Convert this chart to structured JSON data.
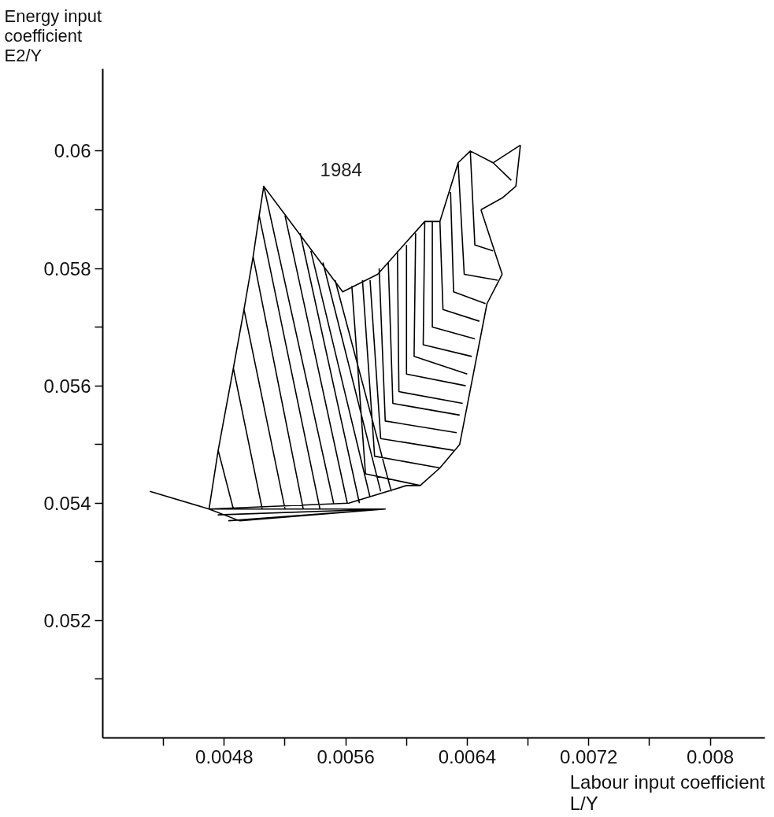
{
  "chart_data": {
    "type": "line",
    "xlabel": "Labour input coefficient\nL/Y",
    "ylabel": "Energy input\ncoefficient\nE2/Y",
    "annotations": [
      "1984"
    ],
    "xlim": [
      0.004,
      0.00836
    ],
    "ylim": [
      0.05,
      0.0614
    ],
    "xticks": [
      {
        "value": 0.0044,
        "label": null
      },
      0.0048,
      {
        "value": 0.0052,
        "label": null
      },
      0.0056,
      {
        "value": 0.006,
        "label": null
      },
      0.0064,
      {
        "value": 0.0068,
        "label": null
      },
      0.0072,
      {
        "value": 0.0076,
        "label": null
      },
      0.008
    ],
    "yticks": [
      {
        "value": 0.051,
        "label": null
      },
      0.052,
      {
        "value": 0.053,
        "label": null
      },
      0.054,
      {
        "value": 0.055,
        "label": null
      },
      0.056,
      {
        "value": 0.057,
        "label": null
      },
      0.058,
      {
        "value": 0.059,
        "label": null
      },
      0.06
    ],
    "grid": false,
    "marker": "none",
    "line_style": "solid",
    "series": [
      {
        "color": "#000000",
        "x": [
          0.0047,
          0.00476,
          0.00486,
          0.00493,
          0.00499,
          0.00503,
          0.00506,
          0.00558,
          0.00581,
          0.00612,
          0.00622,
          0.00634,
          0.00642,
          0.00657,
          0.00675,
          null,
          0.00675,
          0.00672,
          0.00663,
          0.00649,
          null,
          0.00649,
          0.00663,
          null,
          0.00663,
          0.00653,
          0.00635,
          0.00622,
          0.00609,
          0.006,
          0.00562,
          0.0047,
          null,
          0.00431,
          0.0047,
          0.0049,
          0.00586,
          null,
          0.00473,
          0.00586,
          0.00476,
          0.00586,
          0.00483,
          0.00586,
          null,
          0.00476,
          0.00486,
          null,
          0.00486,
          0.00505,
          null,
          0.00493,
          0.0052,
          null,
          0.00499,
          0.00532,
          null,
          0.00503,
          0.00543,
          null,
          0.00506,
          0.00552,
          null,
          0.0052,
          0.00561,
          null,
          0.0053,
          0.00569,
          null,
          0.00537,
          0.00576,
          null,
          0.00545,
          0.00583,
          null,
          0.00553,
          0.0059,
          null,
          0.00564,
          0.00573,
          0.00609,
          null,
          0.00571,
          0.00579,
          0.00622,
          null,
          0.00576,
          0.00583,
          0.00631,
          null,
          0.00582,
          0.00586,
          0.00633,
          null,
          0.00588,
          0.00591,
          0.00635,
          null,
          0.00594,
          0.00595,
          0.00637,
          null,
          0.006,
          0.006,
          0.00639,
          null,
          0.00606,
          0.00605,
          0.0064,
          null,
          0.00612,
          0.00611,
          0.00643,
          null,
          0.00617,
          0.00617,
          0.00645,
          null,
          0.00622,
          0.00624,
          0.00648,
          null,
          0.00629,
          0.00631,
          0.00652,
          null,
          0.00634,
          0.00638,
          0.0066,
          null,
          0.00642,
          0.00645,
          0.00657,
          null,
          0.00657,
          0.00669
        ],
        "values": [
          0.0539,
          0.0549,
          0.0563,
          0.0573,
          0.0582,
          0.0589,
          0.0594,
          0.0576,
          0.0579,
          0.0588,
          0.0588,
          0.0598,
          0.06,
          0.0598,
          0.0601,
          null,
          0.0601,
          0.0594,
          0.0592,
          0.059,
          null,
          0.059,
          0.0579,
          null,
          0.0579,
          0.0574,
          0.055,
          0.0546,
          0.0543,
          0.0543,
          0.054,
          0.0539,
          null,
          0.0542,
          0.0539,
          0.0537,
          0.0539,
          null,
          0.0539,
          0.0539,
          0.0538,
          0.0539,
          0.0537,
          0.0539,
          null,
          0.0549,
          0.0539,
          null,
          0.0563,
          0.0539,
          null,
          0.0573,
          0.0539,
          null,
          0.0582,
          0.0539,
          null,
          0.0589,
          0.0539,
          null,
          0.0594,
          0.054,
          null,
          0.0589,
          0.054,
          null,
          0.0586,
          0.054,
          null,
          0.0583,
          0.0541,
          null,
          0.0581,
          0.0542,
          null,
          0.0578,
          0.0542,
          null,
          0.0577,
          0.0545,
          0.0543,
          null,
          0.0578,
          0.0548,
          0.0546,
          null,
          0.0578,
          0.0551,
          0.0549,
          null,
          0.058,
          0.0554,
          0.0552,
          null,
          0.0581,
          0.0557,
          0.0555,
          null,
          0.0583,
          0.0559,
          0.0557,
          null,
          0.0584,
          0.0562,
          0.056,
          null,
          0.0586,
          0.0565,
          0.0562,
          null,
          0.0588,
          0.0567,
          0.0565,
          null,
          0.0588,
          0.057,
          0.0568,
          null,
          0.0588,
          0.0573,
          0.0571,
          null,
          0.0593,
          0.0576,
          0.0574,
          null,
          0.0598,
          0.0579,
          0.0578,
          null,
          0.06,
          0.0584,
          0.0583,
          null,
          0.0598,
          0.0595
        ]
      }
    ]
  }
}
